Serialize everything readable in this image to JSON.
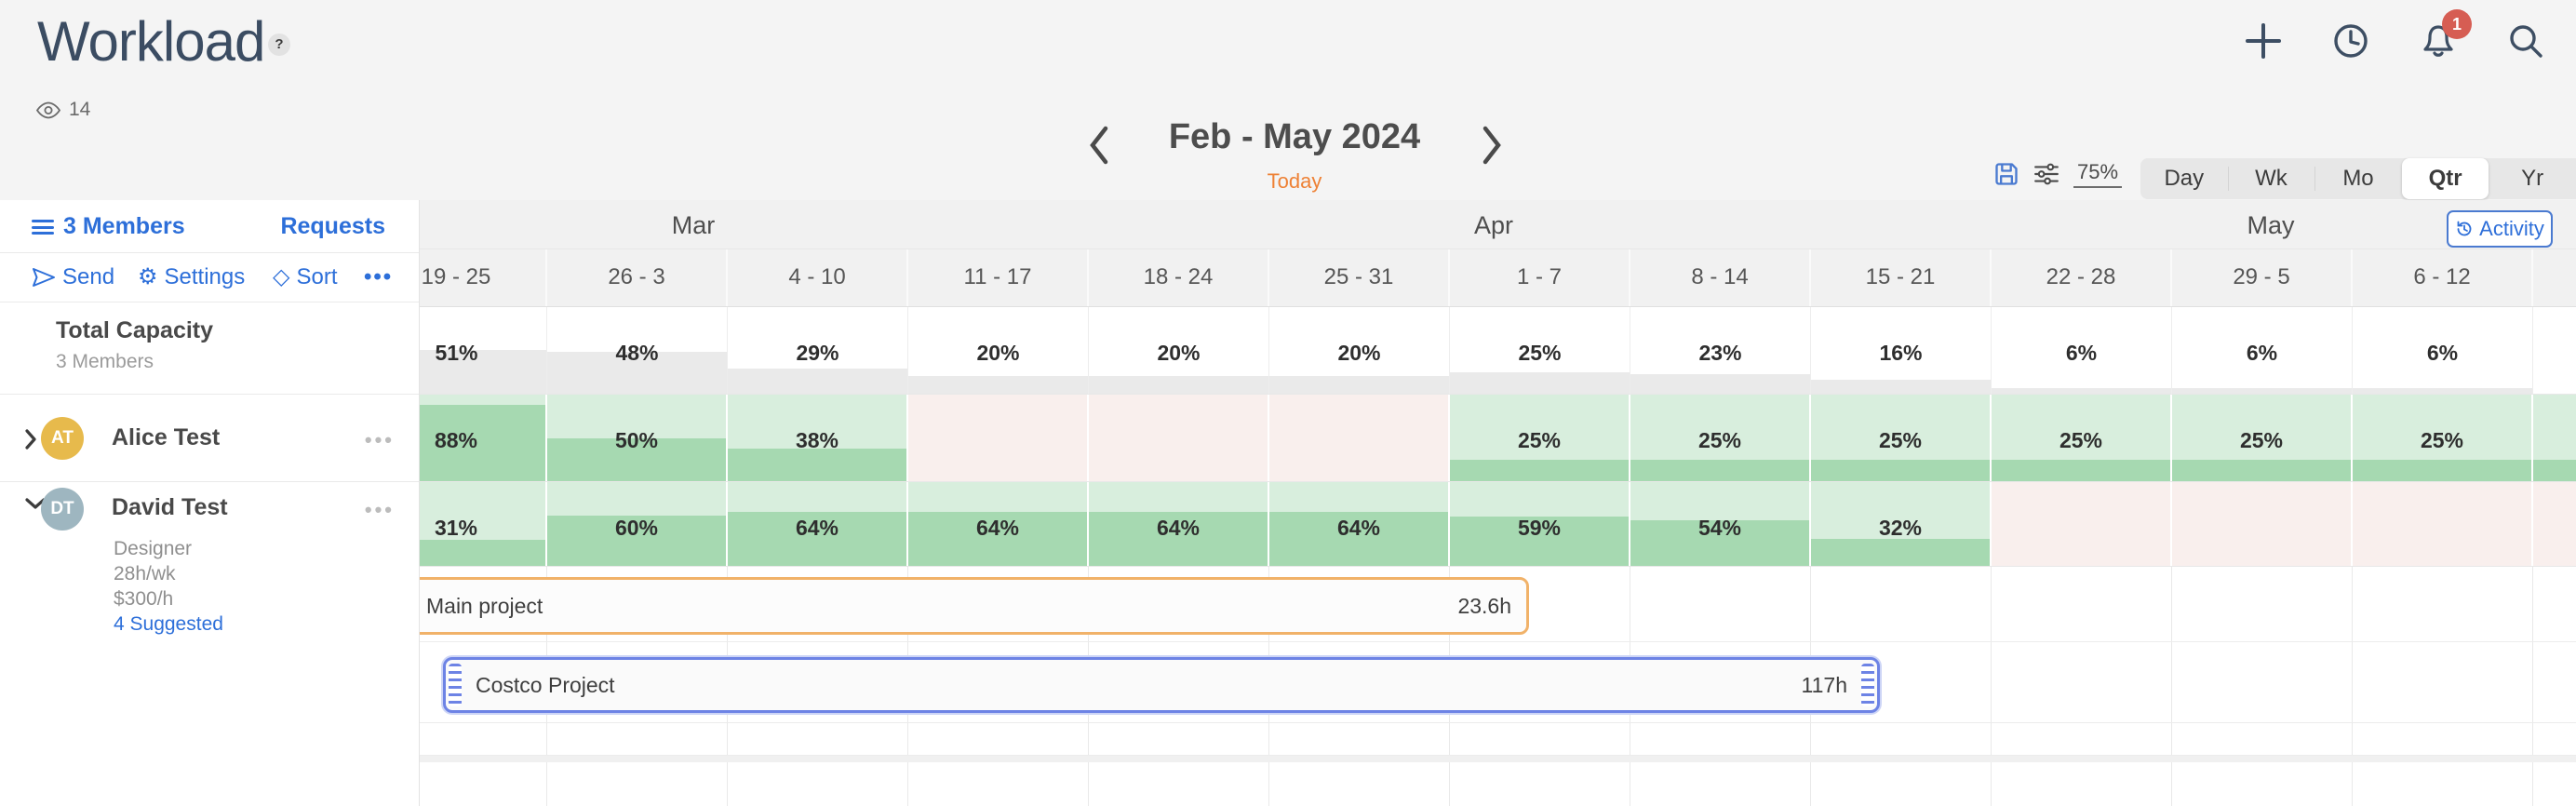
{
  "header": {
    "title": "Workload",
    "help_badge": "?",
    "views_count": "14",
    "nav": {
      "date_range": "Feb - May 2024",
      "today": "Today"
    },
    "toolbar": {
      "zoom_level": "75%",
      "modes": [
        "Day",
        "Wk",
        "Mo",
        "Qtr",
        "Yr"
      ],
      "selected_mode": "Qtr",
      "notification_count": "1"
    }
  },
  "sidebar": {
    "members_label": "3 Members",
    "requests_label": "Requests",
    "actions": {
      "send": "Send",
      "settings": "Settings",
      "sort": "Sort",
      "more": "•••"
    },
    "total_capacity": {
      "title": "Total Capacity",
      "subtitle": "3 Members"
    },
    "members": [
      {
        "initials": "AT",
        "name": "Alice Test",
        "menu": "•••"
      },
      {
        "initials": "DT",
        "name": "David Test",
        "role": "Designer",
        "capacity": "28h/wk",
        "rate": "$300/h",
        "suggested": "4 Suggested",
        "menu": "•••"
      }
    ]
  },
  "timeline": {
    "months": [
      "Mar",
      "Apr",
      "May"
    ],
    "activity_button": "Activity",
    "weeks": [
      "19 - 25",
      "26 - 3",
      "4 - 10",
      "11 - 17",
      "18 - 24",
      "25 - 31",
      "1 - 7",
      "8 - 14",
      "15 - 21",
      "22 - 28",
      "29 - 5",
      "6 - 12"
    ],
    "total_capacity": [
      "51%",
      "48%",
      "29%",
      "20%",
      "20%",
      "20%",
      "25%",
      "23%",
      "16%",
      "6%",
      "6%",
      "6%",
      null
    ],
    "alice": [
      "88%",
      "50%",
      "38%",
      null,
      null,
      null,
      "25%",
      "25%",
      "25%",
      "25%",
      "25%",
      "25%",
      "25%"
    ],
    "david": [
      "31%",
      "60%",
      "64%",
      "64%",
      "64%",
      "64%",
      "59%",
      "54%",
      "32%",
      null,
      null,
      null,
      null
    ],
    "projects": [
      {
        "name": "Main project",
        "hours": "23.6h"
      },
      {
        "name": "Costco Project",
        "hours": "117h"
      }
    ]
  },
  "colors": {
    "accent_blue": "#2d6fd9",
    "orange_accent": "#ee8135",
    "capacity_green": "#a6d9b1",
    "capacity_green_bg": "#d8eedd",
    "overload_pink": "#f9efed",
    "avatar_alice": "#e7ba4c",
    "avatar_david": "#9eb6c0",
    "badge_red": "#d65d53",
    "bar_orange_border": "#f1b269",
    "bar_blue_border": "#6d83e5"
  }
}
